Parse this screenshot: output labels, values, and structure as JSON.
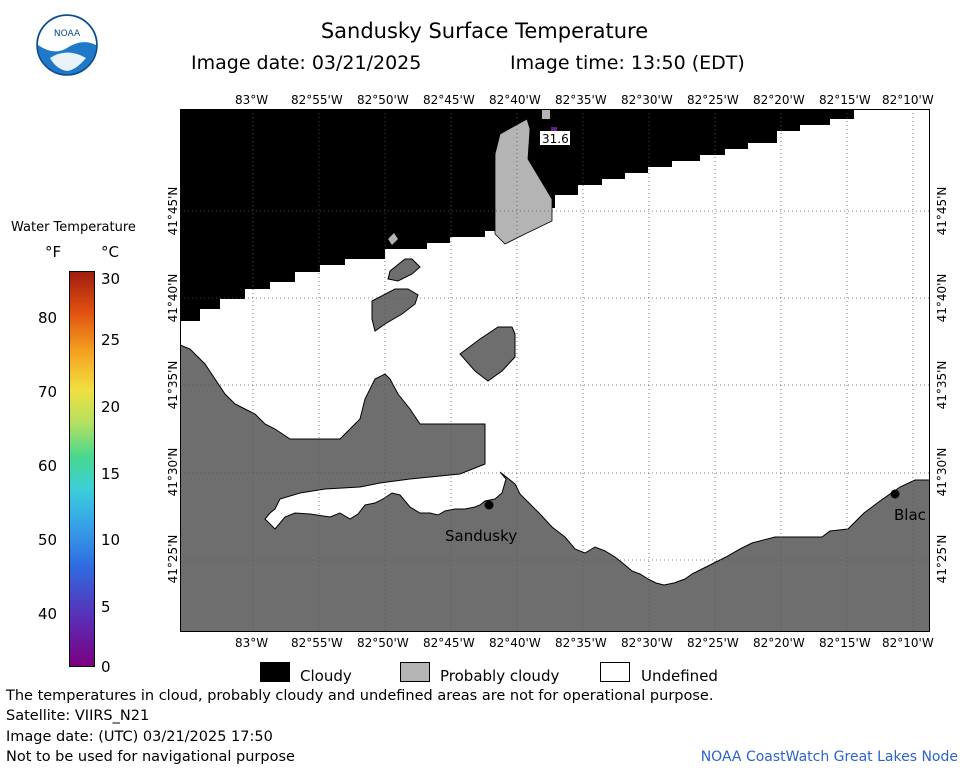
{
  "header": {
    "title": "Sandusky Surface Temperature",
    "image_date": "Image date: 03/21/2025",
    "image_time": "Image time: 13:50 (EDT)"
  },
  "logo": {
    "text": "NOAA"
  },
  "map": {
    "lon_ticks_top": [
      "83°W",
      "82°55'W",
      "82°50'W",
      "82°45'W",
      "82°40'W",
      "82°35'W",
      "82°30'W",
      "82°25'W",
      "82°20'W",
      "82°15'W",
      "82°10'W"
    ],
    "lon_ticks_bottom": [
      "83°W",
      "82°55'W",
      "82°50'W",
      "82°45'W",
      "82°40'W",
      "82°35'W",
      "82°30'W",
      "82°25'W",
      "82°20'W",
      "82°15'W",
      "82°10'W"
    ],
    "lat_ticks": [
      "41°45'N",
      "41°40'N",
      "41°35'N",
      "41°30'N",
      "41°25'N"
    ],
    "sample_value": "31.6",
    "places": [
      {
        "name": "Sandusky"
      },
      {
        "name": "Blac"
      }
    ],
    "colors": {
      "cloudy": "#000000",
      "probably_cloudy": "#b4b4b4",
      "land": "#6e6e6e",
      "undefined": "#ffffff"
    }
  },
  "colorbar": {
    "title": "Water Temperature",
    "unit_f": "°F",
    "unit_c": "°C",
    "f_ticks": [
      "80",
      "70",
      "60",
      "50",
      "40"
    ],
    "c_ticks": [
      "30",
      "25",
      "20",
      "15",
      "10",
      "5",
      "0"
    ]
  },
  "key": {
    "cloudy": "Cloudy",
    "probably_cloudy": "Probably cloudy",
    "undefined": "Undefined"
  },
  "footer": {
    "note": "The temperatures in cloud, probably cloudy and undefined areas are not for operational purpose.",
    "satellite": "Satellite: VIIRS_N21",
    "utc_date": "Image date: (UTC) 03/21/2025  17:50",
    "nav_warning": "Not to be used for navigational purpose",
    "credit": "NOAA CoastWatch Great Lakes Node"
  }
}
